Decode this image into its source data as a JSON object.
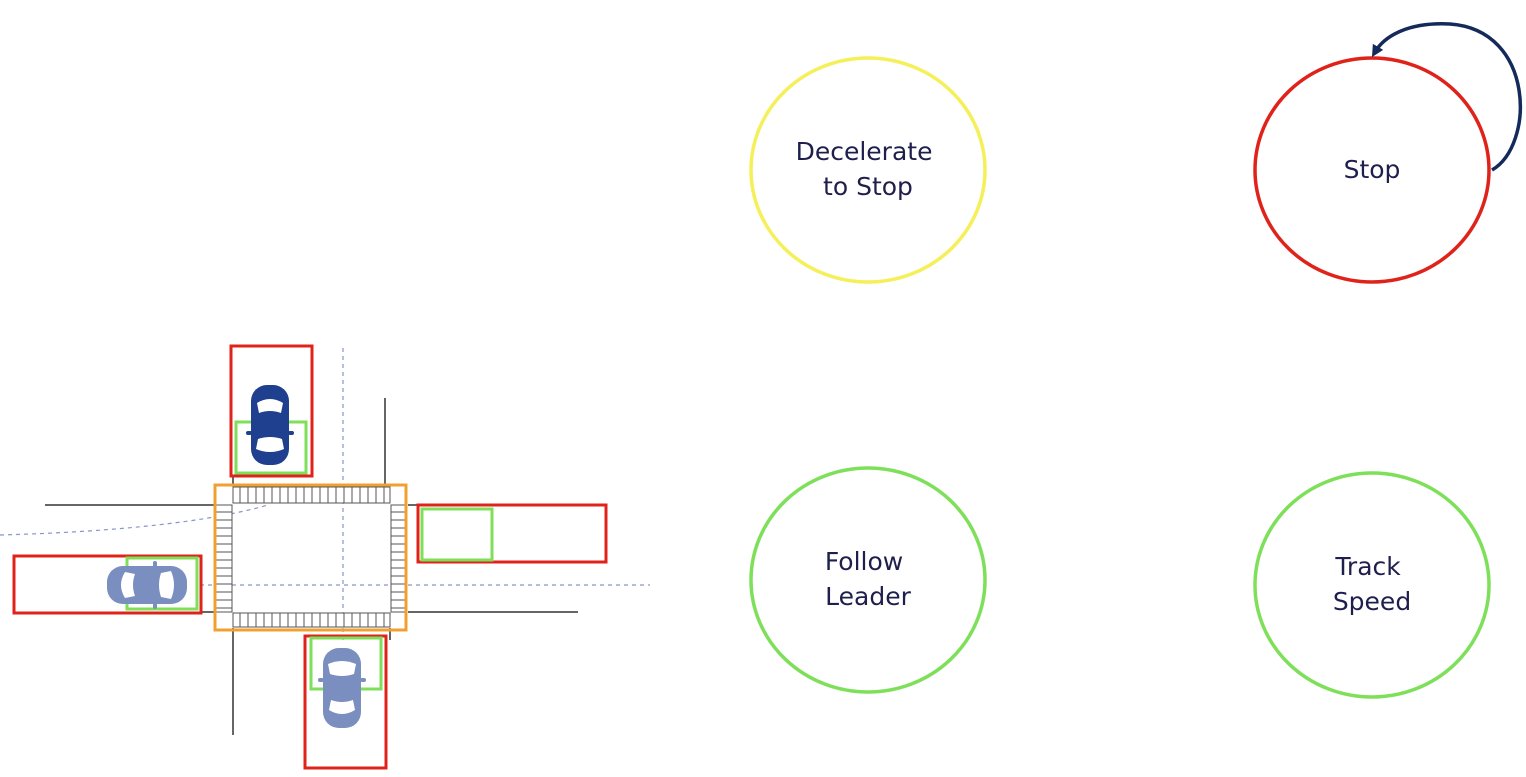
{
  "states": [
    {
      "id": "decelerate",
      "lines": [
        "Decelerate",
        "to Stop"
      ],
      "color": "#f5f05a"
    },
    {
      "id": "stop",
      "lines": [
        "Stop"
      ],
      "color": "#e0231a"
    },
    {
      "id": "follow",
      "lines": [
        "Follow",
        "Leader"
      ],
      "color": "#7ee05a"
    },
    {
      "id": "track",
      "lines": [
        "Track",
        "Speed"
      ],
      "color": "#7ee05a"
    }
  ],
  "colors": {
    "zone_box": "#e0231a",
    "vehicle_box": "#7ee05a",
    "intersection_box": "#f0a030",
    "ego_car": "#1f3f8f",
    "other_car": "#7a8fbf",
    "self_loop_arrow": "#142a5a",
    "road_line": "#333333",
    "lane_guide": "#8a96c8",
    "text": "#1f1f4d"
  },
  "icons": [
    "ego-car-icon",
    "car-icon",
    "self-loop-arrow-icon"
  ]
}
